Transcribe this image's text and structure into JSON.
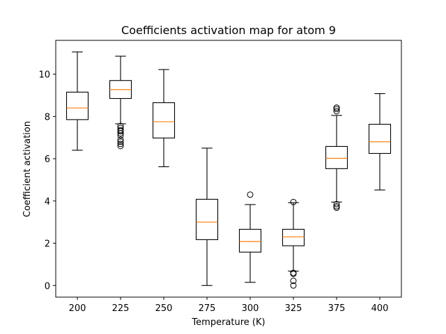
{
  "chart_data": {
    "type": "boxplot",
    "title": "Coefficients activation map for atom 9",
    "xlabel": "Temperature (K)",
    "ylabel": "Coefficient activation",
    "ylim": [
      -0.55,
      11.6
    ],
    "yticks": [
      0,
      2,
      4,
      6,
      8,
      10
    ],
    "categories": [
      "200",
      "225",
      "250",
      "275",
      "300",
      "325",
      "375",
      "400"
    ],
    "boxes": [
      {
        "whisker_low": 6.4,
        "q1": 7.85,
        "median": 8.4,
        "q3": 9.15,
        "whisker_high": 11.05,
        "outliers": []
      },
      {
        "whisker_low": 7.65,
        "q1": 8.85,
        "median": 9.27,
        "q3": 9.7,
        "whisker_high": 10.85,
        "outliers": [
          7.55,
          7.45,
          7.35,
          7.3,
          7.2,
          7.1,
          6.9,
          6.8,
          6.7,
          6.6
        ]
      },
      {
        "whisker_low": 5.62,
        "q1": 6.98,
        "median": 7.75,
        "q3": 8.65,
        "whisker_high": 10.22,
        "outliers": []
      },
      {
        "whisker_low": 0.0,
        "q1": 2.17,
        "median": 3.0,
        "q3": 4.08,
        "whisker_high": 6.5,
        "outliers": []
      },
      {
        "whisker_low": 0.15,
        "q1": 1.58,
        "median": 2.08,
        "q3": 2.66,
        "whisker_high": 3.83,
        "outliers": [
          4.3
        ]
      },
      {
        "whisker_low": 0.68,
        "q1": 1.88,
        "median": 2.3,
        "q3": 2.66,
        "whisker_high": 3.92,
        "outliers": [
          3.95,
          0.6,
          0.55,
          0.22,
          0.0
        ]
      },
      {
        "whisker_low": 3.95,
        "q1": 5.53,
        "median": 6.02,
        "q3": 6.58,
        "whisker_high": 8.05,
        "outliers": [
          8.42,
          8.35,
          8.25,
          3.85,
          3.75,
          3.68
        ]
      },
      {
        "whisker_low": 4.52,
        "q1": 6.25,
        "median": 6.8,
        "q3": 7.63,
        "whisker_high": 9.08,
        "outliers": []
      }
    ],
    "colors": {
      "box": "#000000",
      "median": "#ff7f0e",
      "flier": "#000000"
    },
    "grid": false
  }
}
